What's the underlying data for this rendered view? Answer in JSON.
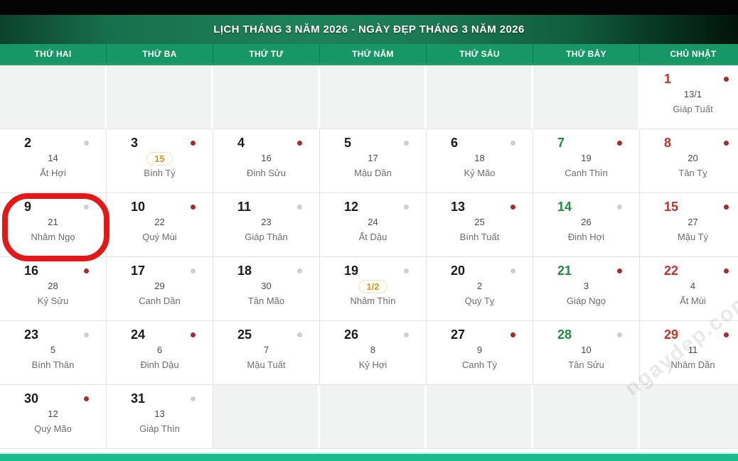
{
  "header": {
    "title": "LỊCH THÁNG 3 NĂM 2026 - NGÀY ĐẸP THÁNG 3 NĂM 2026"
  },
  "weekdays": [
    "THỨ HAI",
    "THỨ BA",
    "THỨ TƯ",
    "THỨ NĂM",
    "THỨ SÁU",
    "THỨ BẢY",
    "CHỦ NHẬT"
  ],
  "watermark": "ngaydep.com",
  "annotations": {
    "circled_day": "9"
  },
  "colors": {
    "saturday": "#1e8e3e",
    "sunday": "#c9302c",
    "weekday_bar": "#179767",
    "bottom_bar": "#19bd8d",
    "dot_red": "#a82b2b",
    "dot_gray": "#cfcfcf",
    "badge_text": "#d6952e",
    "annotation_circle": "#e31919"
  },
  "calendar": {
    "weeks": [
      [
        null,
        null,
        null,
        null,
        null,
        null,
        {
          "day": "1",
          "lunar": "13/1",
          "can_chi": "Giáp Tuất",
          "dot": "red",
          "color": "sunday"
        }
      ],
      [
        {
          "day": "2",
          "lunar": "14",
          "can_chi": "Ất Hợi",
          "dot": "gray",
          "color": "normal"
        },
        {
          "day": "3",
          "lunar": "15",
          "can_chi": "Bính Tý",
          "dot": "red",
          "color": "normal",
          "badge": true
        },
        {
          "day": "4",
          "lunar": "16",
          "can_chi": "Đinh Sửu",
          "dot": "red",
          "color": "normal"
        },
        {
          "day": "5",
          "lunar": "17",
          "can_chi": "Mậu Dần",
          "dot": "gray",
          "color": "normal"
        },
        {
          "day": "6",
          "lunar": "18",
          "can_chi": "Kỷ Mão",
          "dot": "gray",
          "color": "normal"
        },
        {
          "day": "7",
          "lunar": "19",
          "can_chi": "Canh Thìn",
          "dot": "red",
          "color": "saturday"
        },
        {
          "day": "8",
          "lunar": "20",
          "can_chi": "Tân Tỵ",
          "dot": "red",
          "color": "sunday"
        }
      ],
      [
        {
          "day": "9",
          "lunar": "21",
          "can_chi": "Nhâm Ngọ",
          "dot": "gray",
          "color": "normal",
          "circled": true
        },
        {
          "day": "10",
          "lunar": "22",
          "can_chi": "Quý Mùi",
          "dot": "red",
          "color": "normal"
        },
        {
          "day": "11",
          "lunar": "23",
          "can_chi": "Giáp Thân",
          "dot": "gray",
          "color": "normal"
        },
        {
          "day": "12",
          "lunar": "24",
          "can_chi": "Ất Dậu",
          "dot": "gray",
          "color": "normal"
        },
        {
          "day": "13",
          "lunar": "25",
          "can_chi": "Bính Tuất",
          "dot": "red",
          "color": "normal"
        },
        {
          "day": "14",
          "lunar": "26",
          "can_chi": "Đinh Hợi",
          "dot": "gray",
          "color": "saturday"
        },
        {
          "day": "15",
          "lunar": "27",
          "can_chi": "Mậu Tý",
          "dot": "red",
          "color": "sunday"
        }
      ],
      [
        {
          "day": "16",
          "lunar": "28",
          "can_chi": "Kỷ Sửu",
          "dot": "red",
          "color": "normal"
        },
        {
          "day": "17",
          "lunar": "29",
          "can_chi": "Canh Dần",
          "dot": "gray",
          "color": "normal"
        },
        {
          "day": "18",
          "lunar": "30",
          "can_chi": "Tân Mão",
          "dot": "gray",
          "color": "normal"
        },
        {
          "day": "19",
          "lunar": "1/2",
          "can_chi": "Nhâm Thìn",
          "dot": "gray",
          "color": "normal",
          "badge": true
        },
        {
          "day": "20",
          "lunar": "2",
          "can_chi": "Quý Tỵ",
          "dot": "gray",
          "color": "normal"
        },
        {
          "day": "21",
          "lunar": "3",
          "can_chi": "Giáp Ngọ",
          "dot": "red",
          "color": "saturday"
        },
        {
          "day": "22",
          "lunar": "4",
          "can_chi": "Ất Mùi",
          "dot": "red",
          "color": "sunday"
        }
      ],
      [
        {
          "day": "23",
          "lunar": "5",
          "can_chi": "Bính Thân",
          "dot": "gray",
          "color": "normal"
        },
        {
          "day": "24",
          "lunar": "6",
          "can_chi": "Đinh Dậu",
          "dot": "red",
          "color": "normal"
        },
        {
          "day": "25",
          "lunar": "7",
          "can_chi": "Mậu Tuất",
          "dot": "gray",
          "color": "normal"
        },
        {
          "day": "26",
          "lunar": "8",
          "can_chi": "Kỷ Hợi",
          "dot": "gray",
          "color": "normal"
        },
        {
          "day": "27",
          "lunar": "9",
          "can_chi": "Canh Tý",
          "dot": "red",
          "color": "normal"
        },
        {
          "day": "28",
          "lunar": "10",
          "can_chi": "Tân Sửu",
          "dot": "gray",
          "color": "saturday"
        },
        {
          "day": "29",
          "lunar": "11",
          "can_chi": "Nhâm Dần",
          "dot": "red",
          "color": "sunday"
        }
      ],
      [
        {
          "day": "30",
          "lunar": "12",
          "can_chi": "Quý Mão",
          "dot": "red",
          "color": "normal"
        },
        {
          "day": "31",
          "lunar": "13",
          "can_chi": "Giáp Thìn",
          "dot": "gray",
          "color": "normal"
        },
        null,
        null,
        null,
        null,
        null
      ]
    ]
  }
}
